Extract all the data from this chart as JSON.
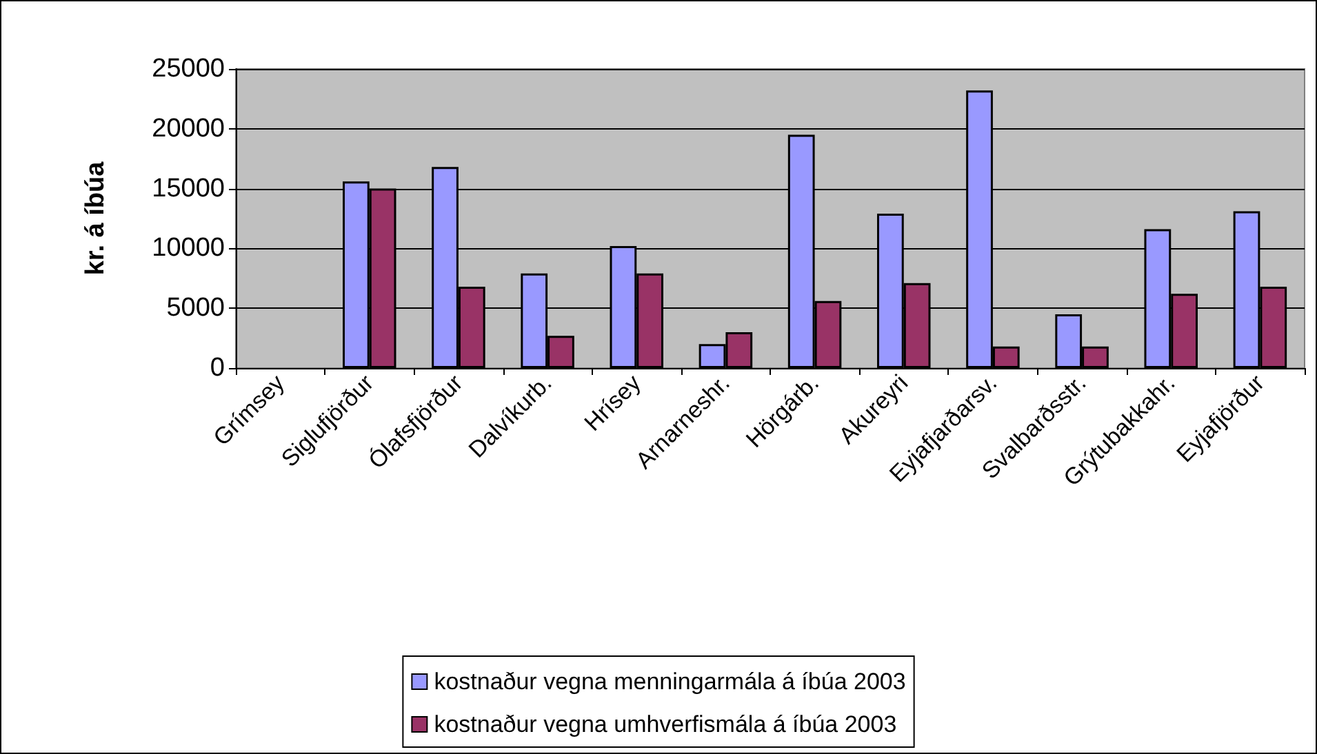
{
  "chart_data": {
    "type": "bar",
    "ylabel": "kr. á íbúa",
    "categories": [
      "Grímsey",
      "Siglufjörður",
      "Ólafsfjörður",
      "Dalvíkurb.",
      "Hrísey",
      "Arnarneshr.",
      "Hörgárb.",
      "Akureyri",
      "Eyjafjarðarsv.",
      "Svalbarðsstr.",
      "Grýtubakkahr.",
      "Eyjafjörður"
    ],
    "series": [
      {
        "name": "kostnaður vegna menningarmála á íbúa 2003",
        "color": "#9999ff",
        "values": [
          null,
          15600,
          16800,
          7900,
          10200,
          2000,
          19500,
          12900,
          23200,
          4500,
          11600,
          13100
        ]
      },
      {
        "name": "kostnaður vegna umhverfismála á íbúa 2003",
        "color": "#993366",
        "values": [
          null,
          15000,
          6800,
          2700,
          7900,
          3000,
          5600,
          7100,
          1800,
          1800,
          6200,
          6800
        ]
      }
    ],
    "ylim": [
      0,
      25000
    ],
    "yticks": [
      0,
      5000,
      10000,
      15000,
      20000,
      25000
    ],
    "grid": "y",
    "legend": "bottom"
  }
}
